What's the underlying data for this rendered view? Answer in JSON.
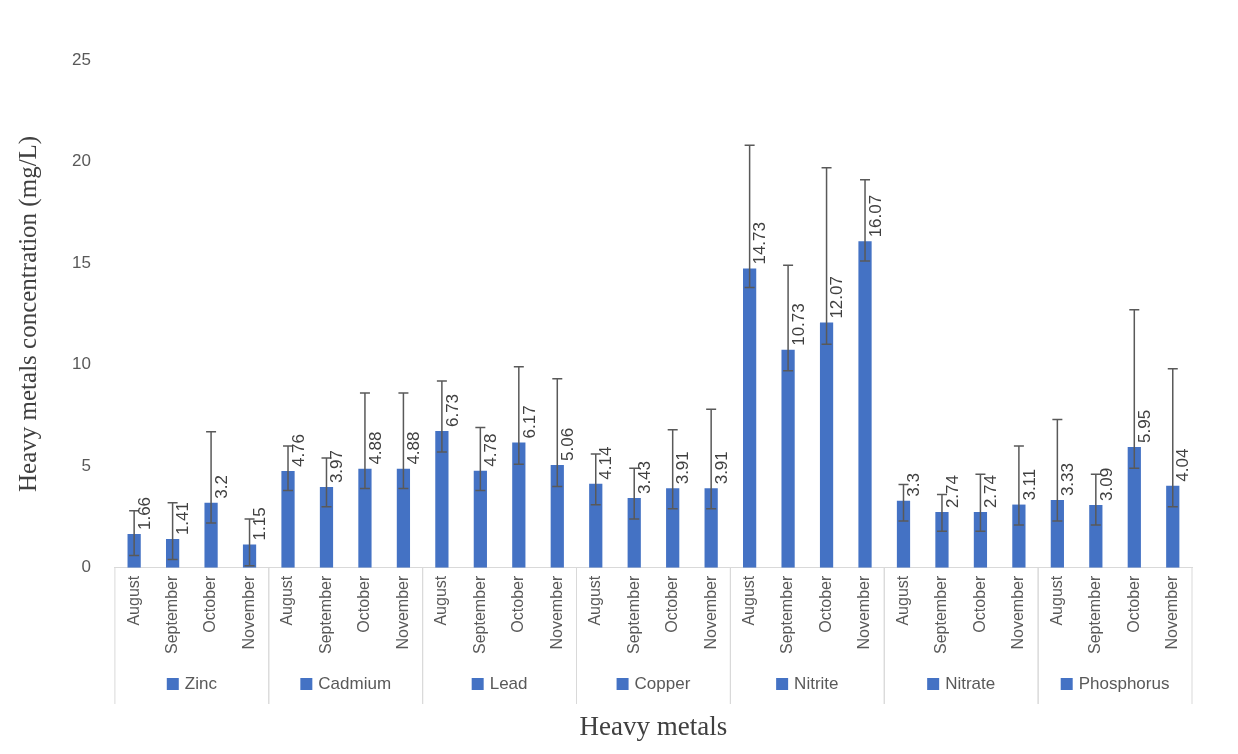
{
  "chart_data": {
    "type": "bar",
    "xlabel": "Heavy metals",
    "ylabel": "Heavy metals concentration (mg/L)",
    "categories": [
      "August",
      "September",
      "October",
      "November",
      "August",
      "September",
      "October",
      "November",
      "August",
      "September",
      "October",
      "November",
      "August",
      "September",
      "October",
      "November",
      "August",
      "September",
      "October",
      "November",
      "August",
      "September",
      "October",
      "November",
      "August",
      "September",
      "October",
      "November"
    ],
    "series": [
      {
        "name": "Zinc",
        "color": "#4472c4",
        "values": [
          1.66,
          1.41,
          3.2,
          1.15,
          null,
          null,
          null,
          null,
          null,
          null,
          null,
          null,
          null,
          null,
          null,
          null,
          null,
          null,
          null,
          null,
          null,
          null,
          null,
          null,
          null,
          null,
          null,
          null
        ],
        "errors": [
          [
            0.6,
            2.8
          ],
          [
            0.4,
            3.2
          ],
          [
            2.2,
            6.7
          ],
          [
            0.1,
            2.4
          ],
          null,
          null,
          null,
          null,
          null,
          null,
          null,
          null,
          null,
          null,
          null,
          null,
          null,
          null,
          null,
          null,
          null,
          null,
          null,
          null,
          null,
          null,
          null,
          null
        ]
      },
      {
        "name": "Cadmium",
        "color": "#4472c4",
        "values": [
          null,
          null,
          null,
          null,
          4.76,
          3.97,
          4.88,
          4.88,
          null,
          null,
          null,
          null,
          null,
          null,
          null,
          null,
          null,
          null,
          null,
          null,
          null,
          null,
          null,
          null,
          null,
          null,
          null,
          null
        ],
        "errors": [
          null,
          null,
          null,
          null,
          [
            3.8,
            6.0
          ],
          [
            3.0,
            5.4
          ],
          [
            3.9,
            8.6
          ],
          [
            3.9,
            8.6
          ],
          null,
          null,
          null,
          null,
          null,
          null,
          null,
          null,
          null,
          null,
          null,
          null,
          null,
          null,
          null,
          null,
          null,
          null,
          null,
          null
        ]
      },
      {
        "name": "Lead",
        "color": "#4472c4",
        "values": [
          null,
          null,
          null,
          null,
          null,
          null,
          null,
          null,
          6.73,
          4.78,
          6.17,
          5.06,
          null,
          null,
          null,
          null,
          null,
          null,
          null,
          null,
          null,
          null,
          null,
          null,
          null,
          null,
          null,
          null
        ],
        "errors": [
          null,
          null,
          null,
          null,
          null,
          null,
          null,
          null,
          [
            5.7,
            9.2
          ],
          [
            3.8,
            6.9
          ],
          [
            5.1,
            9.9
          ],
          [
            4.0,
            9.3
          ],
          null,
          null,
          null,
          null,
          null,
          null,
          null,
          null,
          null,
          null,
          null,
          null,
          null,
          null,
          null,
          null
        ]
      },
      {
        "name": "Copper",
        "color": "#4472c4",
        "values": [
          null,
          null,
          null,
          null,
          null,
          null,
          null,
          null,
          null,
          null,
          null,
          null,
          4.14,
          3.43,
          3.91,
          3.91,
          null,
          null,
          null,
          null,
          null,
          null,
          null,
          null,
          null,
          null,
          null,
          null
        ],
        "errors": [
          null,
          null,
          null,
          null,
          null,
          null,
          null,
          null,
          null,
          null,
          null,
          null,
          [
            3.1,
            5.6
          ],
          [
            2.4,
            4.9
          ],
          [
            2.9,
            6.8
          ],
          [
            2.9,
            7.8
          ],
          null,
          null,
          null,
          null,
          null,
          null,
          null,
          null,
          null,
          null,
          null,
          null
        ]
      },
      {
        "name": "Nitrite",
        "color": "#4472c4",
        "values": [
          null,
          null,
          null,
          null,
          null,
          null,
          null,
          null,
          null,
          null,
          null,
          null,
          null,
          null,
          null,
          null,
          14.73,
          10.73,
          12.07,
          16.07,
          null,
          null,
          null,
          null,
          null,
          null,
          null,
          null
        ],
        "errors": [
          null,
          null,
          null,
          null,
          null,
          null,
          null,
          null,
          null,
          null,
          null,
          null,
          null,
          null,
          null,
          null,
          [
            13.8,
            20.8
          ],
          [
            9.7,
            14.9
          ],
          [
            11.0,
            19.7
          ],
          [
            15.1,
            19.1
          ],
          null,
          null,
          null,
          null,
          null,
          null,
          null,
          null
        ]
      },
      {
        "name": "Nitrate",
        "color": "#4472c4",
        "values": [
          null,
          null,
          null,
          null,
          null,
          null,
          null,
          null,
          null,
          null,
          null,
          null,
          null,
          null,
          null,
          null,
          null,
          null,
          null,
          null,
          3.3,
          2.74,
          2.74,
          3.11,
          null,
          null,
          null,
          null
        ],
        "errors": [
          null,
          null,
          null,
          null,
          null,
          null,
          null,
          null,
          null,
          null,
          null,
          null,
          null,
          null,
          null,
          null,
          null,
          null,
          null,
          null,
          [
            2.3,
            4.1
          ],
          [
            1.8,
            3.6
          ],
          [
            1.8,
            4.6
          ],
          [
            2.1,
            6.0
          ],
          null,
          null,
          null,
          null
        ]
      },
      {
        "name": "Phosphorus",
        "color": "#4472c4",
        "values": [
          null,
          null,
          null,
          null,
          null,
          null,
          null,
          null,
          null,
          null,
          null,
          null,
          null,
          null,
          null,
          null,
          null,
          null,
          null,
          null,
          null,
          null,
          null,
          null,
          3.33,
          3.09,
          5.95,
          4.04
        ],
        "errors": [
          null,
          null,
          null,
          null,
          null,
          null,
          null,
          null,
          null,
          null,
          null,
          null,
          null,
          null,
          null,
          null,
          null,
          null,
          null,
          null,
          null,
          null,
          null,
          null,
          [
            2.3,
            7.3
          ],
          [
            2.1,
            4.6
          ],
          [
            4.9,
            12.7
          ],
          [
            3.0,
            9.8
          ]
        ]
      }
    ],
    "ylim": [
      0,
      25
    ],
    "yticks": [
      0,
      5,
      10,
      15,
      20,
      25
    ],
    "grid": false,
    "legend": "bottom",
    "data_labels": true
  }
}
